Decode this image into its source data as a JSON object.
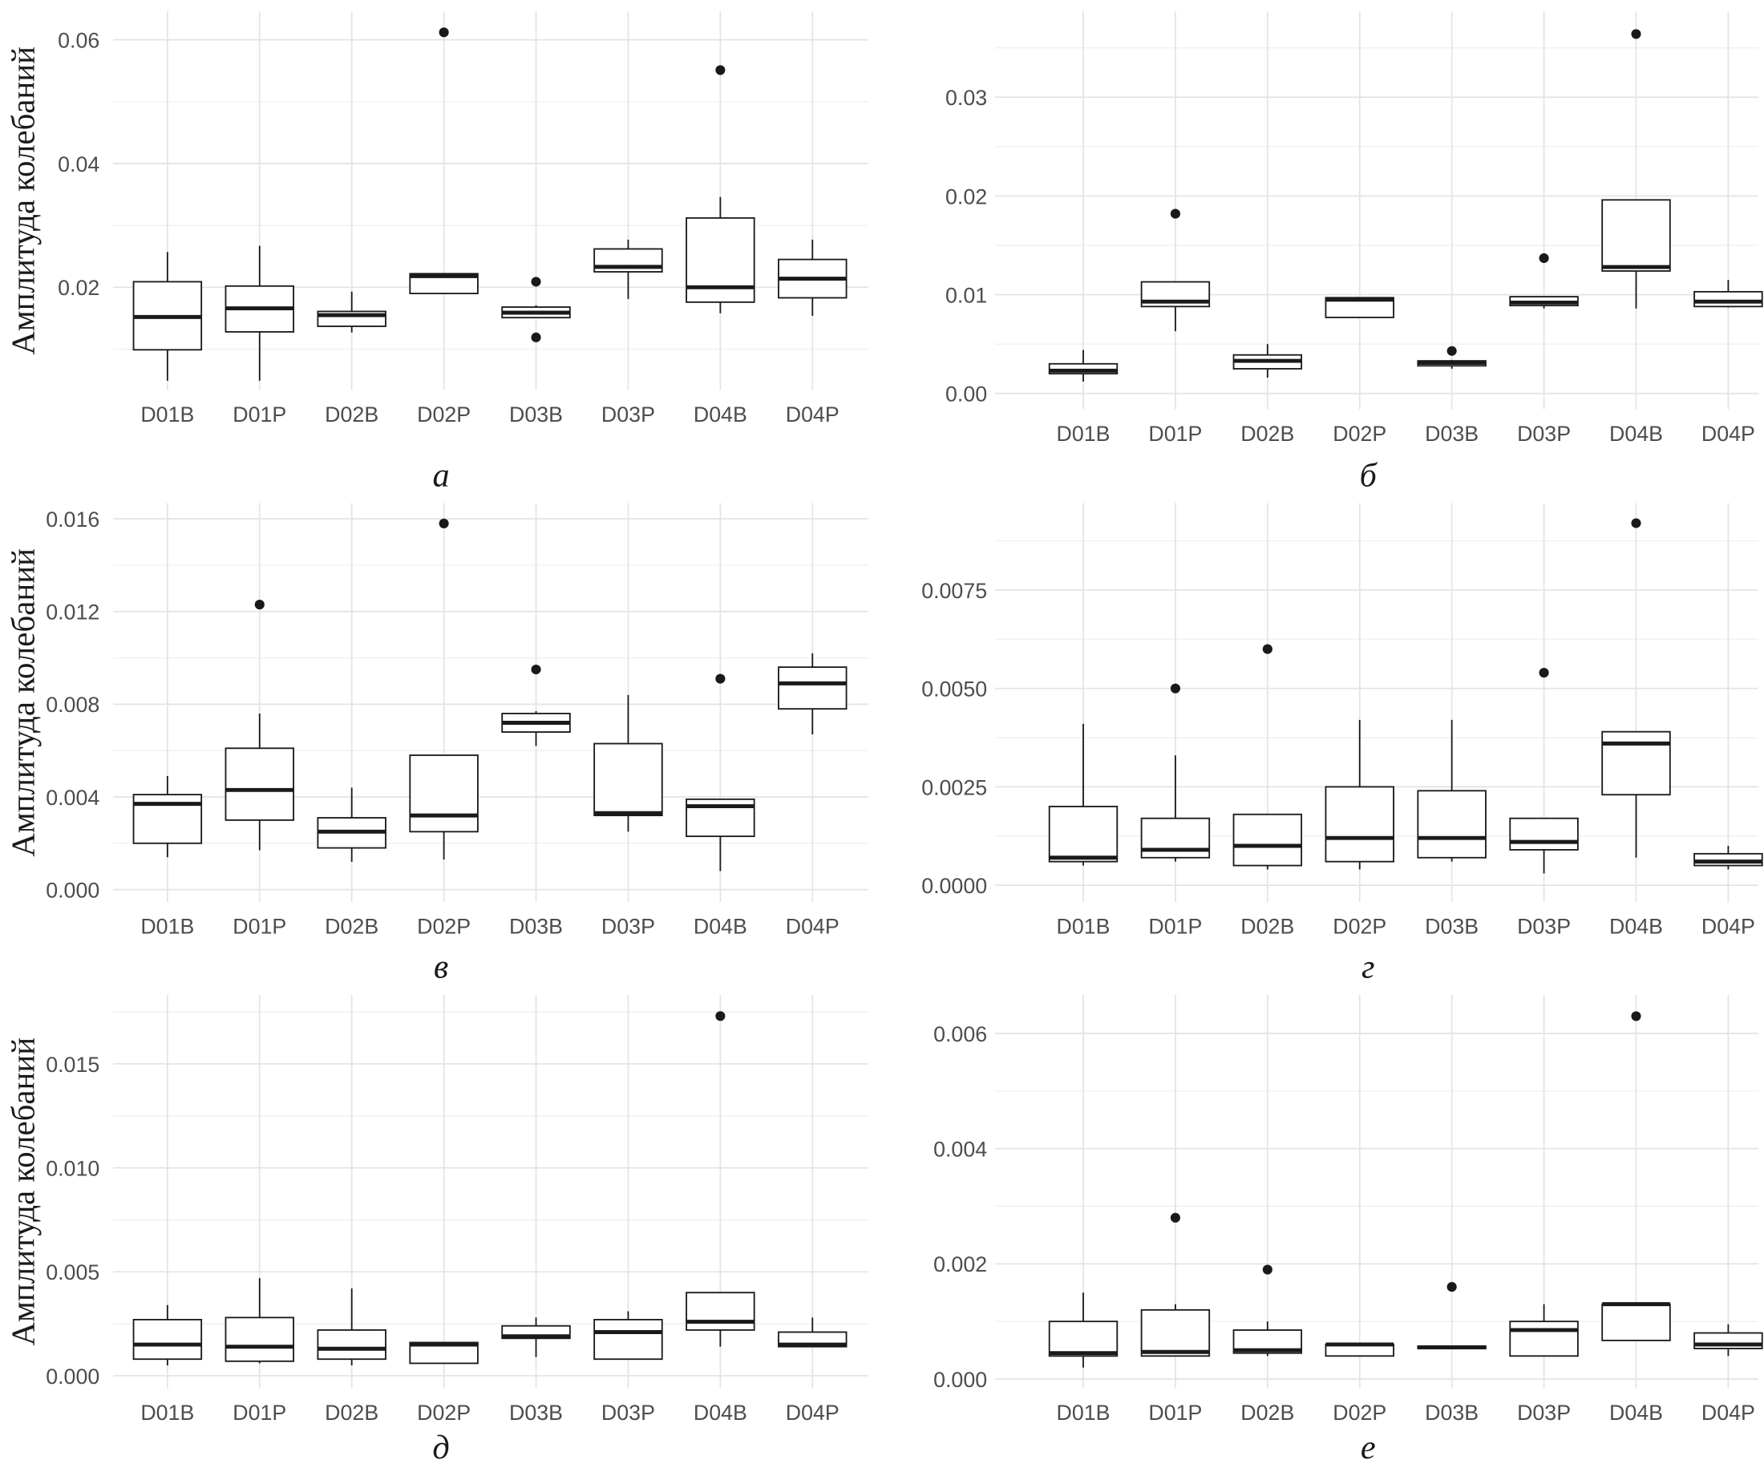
{
  "y_axis_title": "Амплитуда колебаний",
  "categories": [
    "D01B",
    "D01P",
    "D02B",
    "D02P",
    "D03B",
    "D03P",
    "D04B",
    "D04P"
  ],
  "chart_data": [
    {
      "type": "boxplot",
      "caption": "а",
      "ylabel": "Амплитуда колебаний",
      "ylim": [
        0.0034,
        0.0646
      ],
      "ticks": [
        0.02,
        0.04,
        0.06
      ],
      "tick_labels": [
        "0.02",
        "0.04",
        "0.06"
      ],
      "grid": true,
      "boxes": [
        {
          "lo": 0.0049,
          "q1": 0.0099,
          "med": 0.0152,
          "q3": 0.0209,
          "hi": 0.0257,
          "outliers": []
        },
        {
          "lo": 0.0049,
          "q1": 0.0128,
          "med": 0.0166,
          "q3": 0.0202,
          "hi": 0.0267,
          "outliers": []
        },
        {
          "lo": 0.0127,
          "q1": 0.0137,
          "med": 0.0155,
          "q3": 0.0161,
          "hi": 0.0193,
          "outliers": []
        },
        {
          "lo": 0.019,
          "q1": 0.019,
          "med": 0.0218,
          "q3": 0.0222,
          "hi": 0.0222,
          "outliers": [
            0.0612
          ]
        },
        {
          "lo": 0.015,
          "q1": 0.0151,
          "med": 0.0159,
          "q3": 0.0168,
          "hi": 0.0171,
          "outliers": [
            0.0209,
            0.0119
          ]
        },
        {
          "lo": 0.0181,
          "q1": 0.0225,
          "med": 0.0233,
          "q3": 0.0262,
          "hi": 0.0277,
          "outliers": []
        },
        {
          "lo": 0.0158,
          "q1": 0.0176,
          "med": 0.02,
          "q3": 0.0312,
          "hi": 0.0346,
          "outliers": [
            0.0551
          ]
        },
        {
          "lo": 0.0154,
          "q1": 0.0183,
          "med": 0.0214,
          "q3": 0.0245,
          "hi": 0.0277,
          "outliers": []
        }
      ]
    },
    {
      "type": "boxplot",
      "caption": "б",
      "ylabel": "",
      "ylim": [
        -0.0016,
        0.0387
      ],
      "ticks": [
        0.0,
        0.01,
        0.02,
        0.03
      ],
      "tick_labels": [
        "0.00",
        "0.01",
        "0.02",
        "0.03"
      ],
      "grid": true,
      "boxes": [
        {
          "lo": 0.0012,
          "q1": 0.002,
          "med": 0.0023,
          "q3": 0.003,
          "hi": 0.0044,
          "outliers": []
        },
        {
          "lo": 0.0063,
          "q1": 0.0088,
          "med": 0.0093,
          "q3": 0.0113,
          "hi": 0.0113,
          "outliers": [
            0.0182
          ]
        },
        {
          "lo": 0.0016,
          "q1": 0.0025,
          "med": 0.0033,
          "q3": 0.0039,
          "hi": 0.005,
          "outliers": []
        },
        {
          "lo": 0.0077,
          "q1": 0.0077,
          "med": 0.0095,
          "q3": 0.0097,
          "hi": 0.0097,
          "outliers": []
        },
        {
          "lo": 0.0025,
          "q1": 0.0028,
          "med": 0.0031,
          "q3": 0.0033,
          "hi": 0.0034,
          "outliers": [
            0.0043
          ]
        },
        {
          "lo": 0.0086,
          "q1": 0.0089,
          "med": 0.0092,
          "q3": 0.0098,
          "hi": 0.0098,
          "outliers": [
            0.0137
          ]
        },
        {
          "lo": 0.0086,
          "q1": 0.0124,
          "med": 0.0128,
          "q3": 0.0196,
          "hi": 0.0196,
          "outliers": [
            0.0364
          ]
        },
        {
          "lo": 0.0087,
          "q1": 0.0088,
          "med": 0.0093,
          "q3": 0.0103,
          "hi": 0.0115,
          "outliers": []
        }
      ]
    },
    {
      "type": "boxplot",
      "caption": "в",
      "ylabel": "Амплитуда колебаний",
      "ylim": [
        -0.00054,
        0.01668
      ],
      "ticks": [
        0.0,
        0.004,
        0.008,
        0.012,
        0.016
      ],
      "tick_labels": [
        "0.000",
        "0.004",
        "0.008",
        "0.012",
        "0.016"
      ],
      "grid": true,
      "boxes": [
        {
          "lo": 0.0014,
          "q1": 0.002,
          "med": 0.0037,
          "q3": 0.0041,
          "hi": 0.0049,
          "outliers": []
        },
        {
          "lo": 0.0017,
          "q1": 0.003,
          "med": 0.0043,
          "q3": 0.0061,
          "hi": 0.0076,
          "outliers": [
            0.0123
          ]
        },
        {
          "lo": 0.0012,
          "q1": 0.0018,
          "med": 0.0025,
          "q3": 0.0031,
          "hi": 0.0044,
          "outliers": []
        },
        {
          "lo": 0.0013,
          "q1": 0.0025,
          "med": 0.0032,
          "q3": 0.0058,
          "hi": 0.0058,
          "outliers": [
            0.0158
          ]
        },
        {
          "lo": 0.0062,
          "q1": 0.0068,
          "med": 0.0072,
          "q3": 0.0076,
          "hi": 0.0077,
          "outliers": [
            0.0095
          ]
        },
        {
          "lo": 0.0025,
          "q1": 0.0032,
          "med": 0.0033,
          "q3": 0.0063,
          "hi": 0.0084,
          "outliers": []
        },
        {
          "lo": 0.0008,
          "q1": 0.0023,
          "med": 0.0036,
          "q3": 0.0039,
          "hi": 0.0039,
          "outliers": [
            0.0091
          ]
        },
        {
          "lo": 0.0067,
          "q1": 0.0078,
          "med": 0.0089,
          "q3": 0.0096,
          "hi": 0.0102,
          "outliers": []
        }
      ]
    },
    {
      "type": "boxplot",
      "caption": "г",
      "ylabel": "",
      "ylim": [
        -0.00043,
        0.00971
      ],
      "ticks": [
        0.0,
        0.0025,
        0.005,
        0.0075
      ],
      "tick_labels": [
        "0.0000",
        "0.0025",
        "0.0050",
        "0.0075"
      ],
      "grid": true,
      "boxes": [
        {
          "lo": 0.0005,
          "q1": 0.0006,
          "med": 0.0007,
          "q3": 0.002,
          "hi": 0.0041,
          "outliers": []
        },
        {
          "lo": 0.0006,
          "q1": 0.0007,
          "med": 0.0009,
          "q3": 0.0017,
          "hi": 0.0033,
          "outliers": [
            0.005
          ]
        },
        {
          "lo": 0.0004,
          "q1": 0.0005,
          "med": 0.001,
          "q3": 0.0018,
          "hi": 0.0018,
          "outliers": [
            0.006
          ]
        },
        {
          "lo": 0.0004,
          "q1": 0.0006,
          "med": 0.0012,
          "q3": 0.0025,
          "hi": 0.0042,
          "outliers": []
        },
        {
          "lo": 0.0006,
          "q1": 0.0007,
          "med": 0.0012,
          "q3": 0.0024,
          "hi": 0.0042,
          "outliers": []
        },
        {
          "lo": 0.0003,
          "q1": 0.0009,
          "med": 0.0011,
          "q3": 0.0017,
          "hi": 0.0017,
          "outliers": [
            0.0054
          ]
        },
        {
          "lo": 0.0007,
          "q1": 0.0023,
          "med": 0.0036,
          "q3": 0.0039,
          "hi": 0.0039,
          "outliers": [
            0.0092
          ]
        },
        {
          "lo": 0.0004,
          "q1": 0.0005,
          "med": 0.0006,
          "q3": 0.0008,
          "hi": 0.001,
          "outliers": []
        }
      ]
    },
    {
      "type": "boxplot",
      "caption": "д",
      "ylabel": "Амплитуда колебаний",
      "ylim": [
        -0.0006,
        0.01832
      ],
      "ticks": [
        0.0,
        0.005,
        0.01,
        0.015
      ],
      "tick_labels": [
        "0.000",
        "0.005",
        "0.010",
        "0.015"
      ],
      "grid": true,
      "boxes": [
        {
          "lo": 0.0005,
          "q1": 0.0008,
          "med": 0.0015,
          "q3": 0.0027,
          "hi": 0.0034,
          "outliers": []
        },
        {
          "lo": 0.0006,
          "q1": 0.0007,
          "med": 0.0014,
          "q3": 0.0028,
          "hi": 0.0047,
          "outliers": []
        },
        {
          "lo": 0.0005,
          "q1": 0.0008,
          "med": 0.0013,
          "q3": 0.0022,
          "hi": 0.0042,
          "outliers": []
        },
        {
          "lo": 0.0006,
          "q1": 0.0006,
          "med": 0.0015,
          "q3": 0.0016,
          "hi": 0.0016,
          "outliers": []
        },
        {
          "lo": 0.0009,
          "q1": 0.0018,
          "med": 0.0019,
          "q3": 0.0024,
          "hi": 0.0028,
          "outliers": []
        },
        {
          "lo": 0.0008,
          "q1": 0.0008,
          "med": 0.0021,
          "q3": 0.0027,
          "hi": 0.0031,
          "outliers": []
        },
        {
          "lo": 0.0014,
          "q1": 0.0022,
          "med": 0.0026,
          "q3": 0.004,
          "hi": 0.004,
          "outliers": [
            0.0173
          ]
        },
        {
          "lo": 0.0014,
          "q1": 0.0014,
          "med": 0.0015,
          "q3": 0.0021,
          "hi": 0.0028,
          "outliers": []
        }
      ]
    },
    {
      "type": "boxplot",
      "caption": "е",
      "ylabel": "",
      "ylim": [
        -0.00016,
        0.00667
      ],
      "ticks": [
        0.0,
        0.002,
        0.004,
        0.006
      ],
      "tick_labels": [
        "0.000",
        "0.002",
        "0.004",
        "0.006"
      ],
      "grid": true,
      "boxes": [
        {
          "lo": 0.0002,
          "q1": 0.0004,
          "med": 0.00045,
          "q3": 0.001,
          "hi": 0.0015,
          "outliers": []
        },
        {
          "lo": 0.0004,
          "q1": 0.0004,
          "med": 0.00047,
          "q3": 0.0012,
          "hi": 0.0013,
          "outliers": [
            0.0028
          ]
        },
        {
          "lo": 0.0004,
          "q1": 0.00045,
          "med": 0.0005,
          "q3": 0.00085,
          "hi": 0.001,
          "outliers": [
            0.0019
          ]
        },
        {
          "lo": 0.0004,
          "q1": 0.0004,
          "med": 0.0006,
          "q3": 0.0006,
          "hi": 0.0006,
          "outliers": []
        },
        {
          "lo": 0.00052,
          "q1": 0.00053,
          "med": 0.00055,
          "q3": 0.00057,
          "hi": 0.00058,
          "outliers": [
            0.0016
          ]
        },
        {
          "lo": 0.0004,
          "q1": 0.0004,
          "med": 0.00085,
          "q3": 0.001,
          "hi": 0.0013,
          "outliers": []
        },
        {
          "lo": 0.00067,
          "q1": 0.00067,
          "med": 0.0013,
          "q3": 0.0013,
          "hi": 0.0013,
          "outliers": [
            0.0063
          ]
        },
        {
          "lo": 0.0004,
          "q1": 0.00053,
          "med": 0.0006,
          "q3": 0.0008,
          "hi": 0.00095,
          "outliers": []
        }
      ]
    }
  ]
}
